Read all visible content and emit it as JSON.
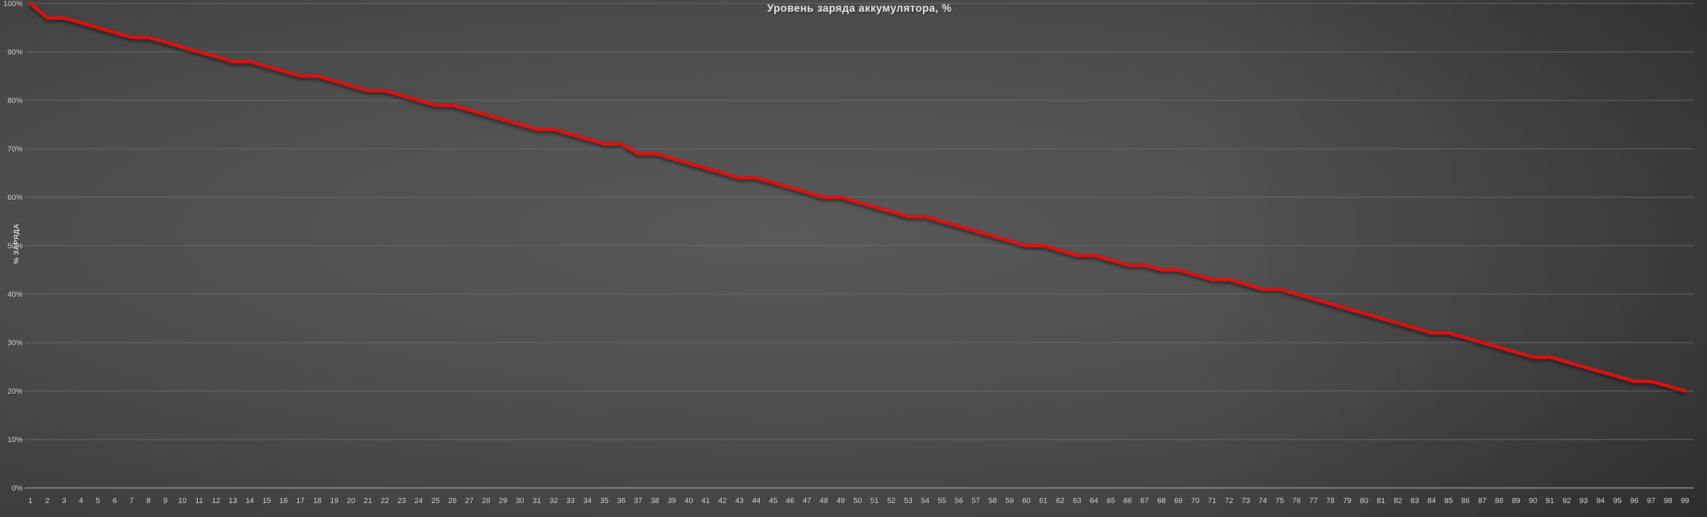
{
  "colors": {
    "background_center": "#595959",
    "background_edge": "#262626",
    "gridline": "#6b6b6b",
    "baseline": "#9a9a9a",
    "title_text": "#f2f2f2",
    "tick_text": "#e9e9e9",
    "line": "#db1212"
  },
  "chart_data": {
    "type": "line",
    "title": "Уровень заряда аккумулятора, %",
    "ylabel": "% ЗАРЯДА",
    "xlabel": "",
    "ylim": [
      0,
      100
    ],
    "grid": true,
    "legend": false,
    "y_ticklabels": [
      "0%",
      "10%",
      "20%",
      "30%",
      "40%",
      "50%",
      "60%",
      "70%",
      "80%",
      "90%",
      "100%"
    ],
    "x": [
      1,
      2,
      3,
      4,
      5,
      6,
      7,
      8,
      9,
      10,
      11,
      12,
      13,
      14,
      15,
      16,
      17,
      18,
      19,
      20,
      21,
      22,
      23,
      24,
      25,
      26,
      27,
      28,
      29,
      30,
      31,
      32,
      33,
      34,
      35,
      36,
      37,
      38,
      39,
      40,
      41,
      42,
      43,
      44,
      45,
      46,
      47,
      48,
      49,
      50,
      51,
      52,
      53,
      54,
      55,
      56,
      57,
      58,
      59,
      60,
      61,
      62,
      63,
      64,
      65,
      66,
      67,
      68,
      69,
      70,
      71,
      72,
      73,
      74,
      75,
      76,
      77,
      78,
      79,
      80,
      81,
      82,
      83,
      84,
      85,
      86,
      87,
      88,
      89,
      90,
      91,
      92,
      93,
      94,
      95,
      96,
      97,
      98,
      99
    ],
    "series": [
      {
        "color": "#db1212",
        "values": [
          100,
          97,
          97,
          96,
          95,
          94,
          93,
          93,
          92,
          91,
          90,
          89,
          88,
          88,
          87,
          86,
          85,
          85,
          84,
          83,
          82,
          82,
          81,
          80,
          79,
          79,
          78,
          77,
          76,
          75,
          74,
          74,
          73,
          72,
          71,
          71,
          69,
          69,
          68,
          67,
          66,
          65,
          64,
          64,
          63,
          62,
          61,
          60,
          60,
          59,
          58,
          57,
          56,
          56,
          55,
          54,
          53,
          52,
          51,
          50,
          50,
          49,
          48,
          48,
          47,
          46,
          46,
          45,
          45,
          44,
          43,
          43,
          42,
          41,
          41,
          40,
          39,
          38,
          37,
          36,
          35,
          34,
          33,
          32,
          32,
          31,
          30,
          29,
          28,
          27,
          27,
          26,
          25,
          24,
          23,
          22,
          22,
          21,
          20
        ]
      }
    ]
  }
}
